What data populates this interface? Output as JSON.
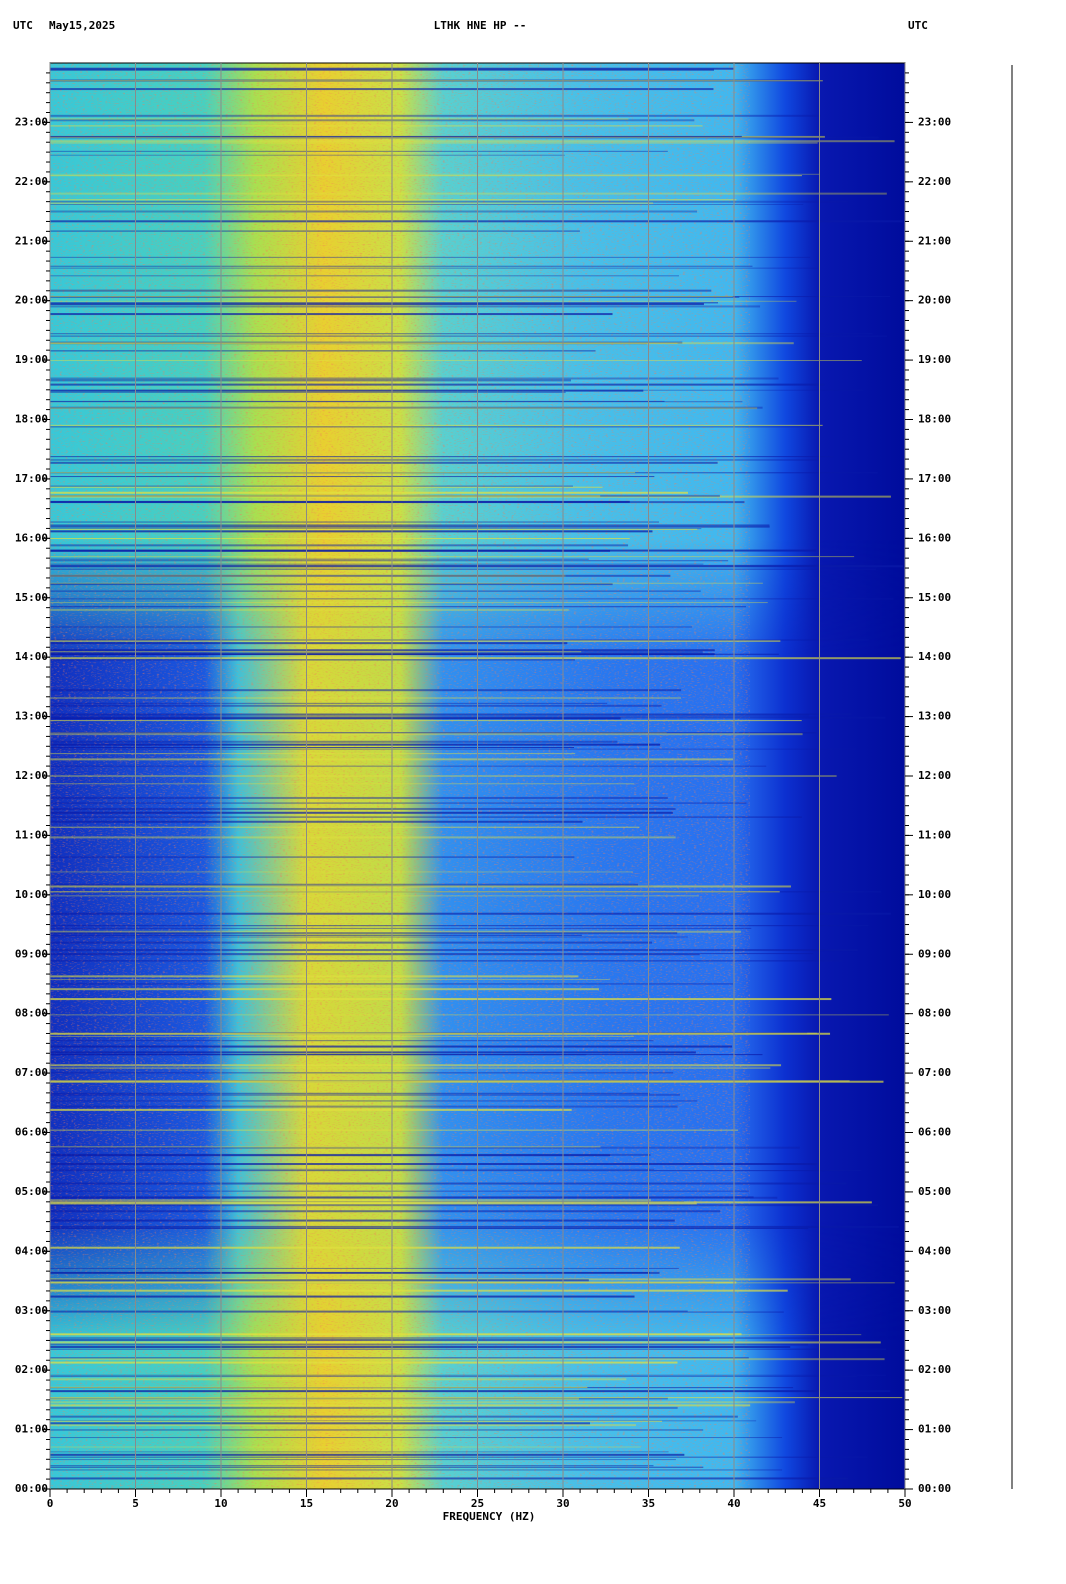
{
  "chart_data": {
    "type": "spectrogram",
    "title": "LTHK HNE HP --",
    "date": "May15,2025",
    "timezone_label": "UTC",
    "x_label": "FREQUENCY (HZ)",
    "xlim": [
      0,
      50
    ],
    "xticks": [
      0,
      5,
      10,
      15,
      20,
      25,
      30,
      35,
      40,
      45,
      50
    ],
    "ylim": [
      0,
      24
    ],
    "yticks": [
      {
        "value": 0,
        "label": "00:00"
      },
      {
        "value": 1,
        "label": "01:00"
      },
      {
        "value": 2,
        "label": "02:00"
      },
      {
        "value": 3,
        "label": "03:00"
      },
      {
        "value": 4,
        "label": "04:00"
      },
      {
        "value": 5,
        "label": "05:00"
      },
      {
        "value": 6,
        "label": "06:00"
      },
      {
        "value": 7,
        "label": "07:00"
      },
      {
        "value": 8,
        "label": "08:00"
      },
      {
        "value": 9,
        "label": "09:00"
      },
      {
        "value": 10,
        "label": "10:00"
      },
      {
        "value": 11,
        "label": "11:00"
      },
      {
        "value": 12,
        "label": "12:00"
      },
      {
        "value": 13,
        "label": "13:00"
      },
      {
        "value": 14,
        "label": "14:00"
      },
      {
        "value": 15,
        "label": "15:00"
      },
      {
        "value": 16,
        "label": "16:00"
      },
      {
        "value": 17,
        "label": "17:00"
      },
      {
        "value": 18,
        "label": "18:00"
      },
      {
        "value": 19,
        "label": "19:00"
      },
      {
        "value": 20,
        "label": "20:00"
      },
      {
        "value": 21,
        "label": "21:00"
      },
      {
        "value": 22,
        "label": "22:00"
      },
      {
        "value": 23,
        "label": "23:00"
      }
    ],
    "grid": true
  }
}
